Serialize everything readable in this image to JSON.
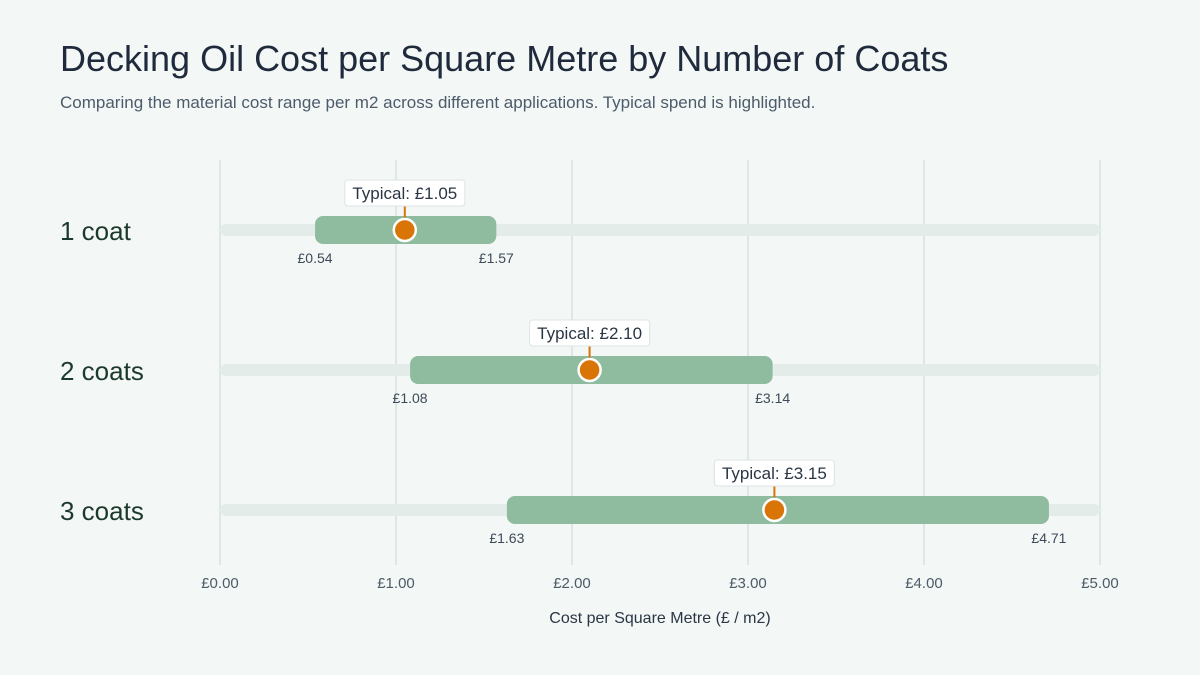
{
  "chart_data": {
    "type": "range",
    "title": "Decking Oil Cost per Square Metre by Number of Coats",
    "subtitle": "Comparing the material cost range per m2 across different applications. Typical spend is highlighted.",
    "xlabel": "Cost per Square Metre (£ / m2)",
    "xlim": [
      0,
      5
    ],
    "xticks": [
      0,
      1,
      2,
      3,
      4,
      5
    ],
    "tick_labels": [
      "£0.00",
      "£1.00",
      "£2.00",
      "£3.00",
      "£4.00",
      "£5.00"
    ],
    "grid": true,
    "categories": [
      "1 coat",
      "2 coats",
      "3 coats"
    ],
    "series": [
      {
        "min": 0.54,
        "max": 1.57,
        "typical": 1.05,
        "min_label": "£0.54",
        "max_label": "£1.57",
        "typical_label": "Typical: £1.05"
      },
      {
        "min": 1.08,
        "max": 3.14,
        "typical": 2.1,
        "min_label": "£1.08",
        "max_label": "£3.14",
        "typical_label": "Typical: £2.10"
      },
      {
        "min": 1.63,
        "max": 4.71,
        "typical": 3.15,
        "min_label": "£1.63",
        "max_label": "£4.71",
        "typical_label": "Typical: £3.15"
      }
    ],
    "colors": {
      "range": "#8fbc9f",
      "track": "#e4ece9",
      "typical": "#d97406",
      "grid": "#dde7e7"
    }
  }
}
